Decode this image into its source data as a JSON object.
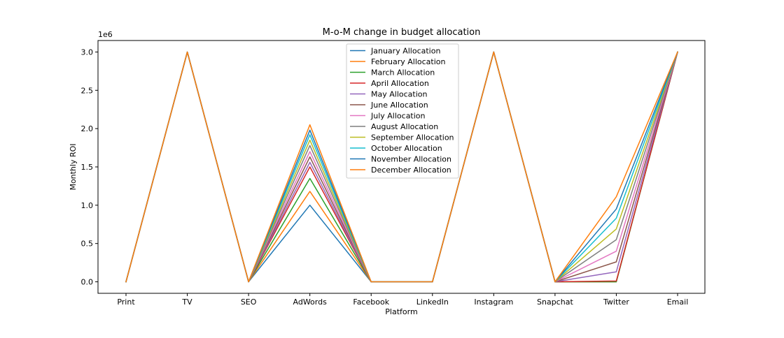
{
  "chart_data": {
    "type": "line",
    "title": "M-o-M change in budget allocation",
    "xlabel": "Platform",
    "ylabel": "Monthly ROI",
    "y_multiplier_label": "1e6",
    "categories": [
      "Print",
      "TV",
      "SEO",
      "AdWords",
      "Facebook",
      "LinkedIn",
      "Instagram",
      "Snapchat",
      "Twitter",
      "Email"
    ],
    "yticks": [
      0,
      500000,
      1000000,
      1500000,
      2000000,
      2500000,
      3000000
    ],
    "ytick_labels": [
      "0.0",
      "0.5",
      "1.0",
      "1.5",
      "2.0",
      "2.5",
      "3.0"
    ],
    "ylim": [
      -150000,
      3150000
    ],
    "grid": false,
    "legend_position": "upper-center",
    "series": [
      {
        "name": "January Allocation",
        "color": "#1f77b4",
        "values": [
          0,
          3000000,
          0,
          1000000,
          0,
          0,
          3000000,
          0,
          0,
          3000000
        ]
      },
      {
        "name": "February Allocation",
        "color": "#ff7f0e",
        "values": [
          0,
          3000000,
          0,
          1180000,
          0,
          0,
          3000000,
          0,
          0,
          3000000
        ]
      },
      {
        "name": "March Allocation",
        "color": "#2ca02c",
        "values": [
          0,
          3000000,
          0,
          1350000,
          0,
          0,
          3000000,
          0,
          0,
          3000000
        ]
      },
      {
        "name": "April Allocation",
        "color": "#d62728",
        "values": [
          0,
          3000000,
          0,
          1500000,
          0,
          0,
          3000000,
          0,
          10000,
          3000000
        ]
      },
      {
        "name": "May Allocation",
        "color": "#9467bd",
        "values": [
          0,
          3000000,
          0,
          1560000,
          0,
          0,
          3000000,
          0,
          130000,
          3000000
        ]
      },
      {
        "name": "June Allocation",
        "color": "#8c564b",
        "values": [
          0,
          3000000,
          0,
          1630000,
          0,
          0,
          3000000,
          0,
          260000,
          3000000
        ]
      },
      {
        "name": "July Allocation",
        "color": "#e377c2",
        "values": [
          0,
          3000000,
          0,
          1700000,
          0,
          0,
          3000000,
          0,
          400000,
          3000000
        ]
      },
      {
        "name": "August Allocation",
        "color": "#7f7f7f",
        "values": [
          0,
          3000000,
          0,
          1780000,
          0,
          0,
          3000000,
          0,
          550000,
          3000000
        ]
      },
      {
        "name": "September Allocation",
        "color": "#bcbd22",
        "values": [
          0,
          3000000,
          0,
          1850000,
          0,
          0,
          3000000,
          0,
          690000,
          3000000
        ]
      },
      {
        "name": "October Allocation",
        "color": "#17becf",
        "values": [
          0,
          3000000,
          0,
          1920000,
          0,
          0,
          3000000,
          0,
          830000,
          3000000
        ]
      },
      {
        "name": "November Allocation",
        "color": "#1f77b4",
        "values": [
          0,
          3000000,
          0,
          1980000,
          0,
          0,
          3000000,
          0,
          950000,
          3000000
        ]
      },
      {
        "name": "December Allocation",
        "color": "#ff7f0e",
        "values": [
          0,
          3000000,
          0,
          2050000,
          0,
          0,
          3000000,
          0,
          1110000,
          3000000
        ]
      }
    ]
  }
}
